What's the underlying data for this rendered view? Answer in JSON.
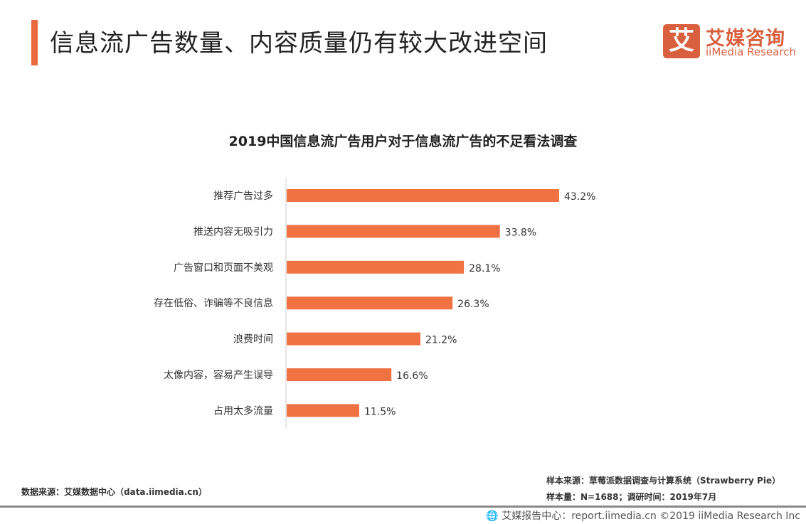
{
  "header": {
    "title": "信息流广告数量、内容质量仍有较大改进空间",
    "accent_color": "#e8683f"
  },
  "logo": {
    "mark": "艾",
    "cn": "艾媒咨询",
    "en": "iiMedia Research"
  },
  "chart_data": {
    "type": "bar",
    "orientation": "horizontal",
    "title": "2019中国信息流广告用户对于信息流广告的不足看法调查",
    "categories": [
      "推荐广告过多",
      "推送内容无吸引力",
      "广告窗口和页面不美观",
      "存在低俗、诈骗等不良信息",
      "浪费时间",
      "太像内容，容易产生误导",
      "占用太多流量"
    ],
    "values": [
      43.2,
      33.8,
      28.1,
      26.3,
      21.2,
      16.6,
      11.5
    ],
    "value_labels": [
      "43.2%",
      "33.8%",
      "28.1%",
      "26.3%",
      "21.2%",
      "16.6%",
      "11.5%"
    ],
    "unit": "%",
    "xlim": [
      0,
      50
    ],
    "bar_color": "#f07142",
    "grid": false,
    "legend": "none"
  },
  "sources": {
    "data_source": "数据来源：艾媒数据中心（data.iimedia.cn）",
    "sample_source": "样本来源：草莓派数据调查与计算系统（Strawberry Pie）",
    "sample_size": "样本量：N=1688；调研时间：2019年7月"
  },
  "footer": {
    "text": "艾媒报告中心：report.iimedia.cn  ©2019  iiMedia Research  Inc"
  }
}
